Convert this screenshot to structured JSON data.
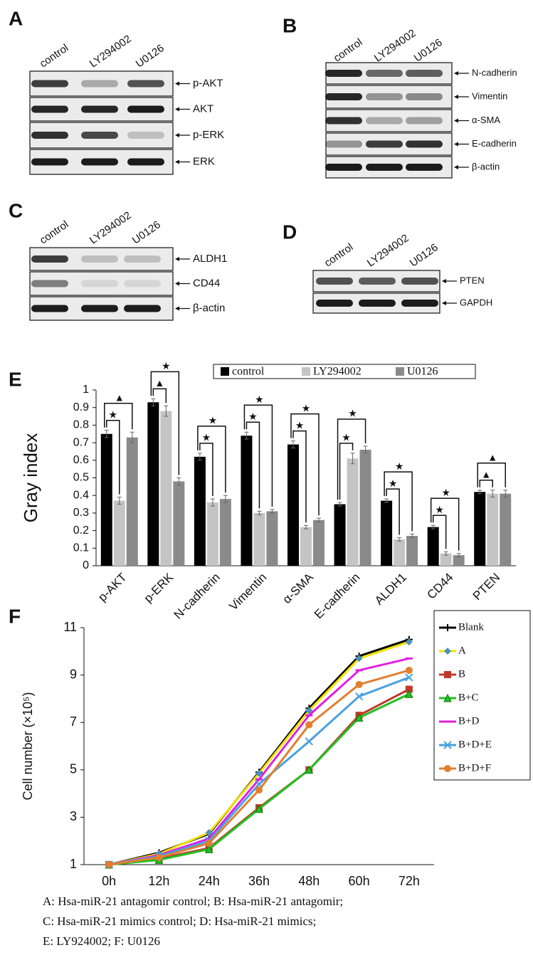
{
  "panels": [
    {
      "letter": "A",
      "lanes": [
        "control",
        "LY294002",
        "U0126"
      ],
      "rows": [
        "p-AKT",
        "AKT",
        "p-ERK",
        "ERK"
      ]
    },
    {
      "letter": "B",
      "lanes": [
        "control",
        "LY294002",
        "U0126"
      ],
      "rows": [
        "N-cadherin",
        "Vimentin",
        "α-SMA",
        "E-cadherin",
        "β-actin"
      ]
    },
    {
      "letter": "C",
      "lanes": [
        "control",
        "LY294002",
        "U0126"
      ],
      "rows": [
        "ALDH1",
        "CD44",
        "β-actin"
      ]
    },
    {
      "letter": "D",
      "lanes": [
        "control",
        "LY294002",
        "U0126"
      ],
      "rows": [
        "PTEN",
        "GAPDH"
      ]
    }
  ],
  "chart_data": [
    {
      "type": "bar",
      "panel": "E",
      "y_label": "Gray index",
      "categories": [
        "p-AKT",
        "p-ERK",
        "N-cadherin",
        "Vimentin",
        "α-SMA",
        "E-cadherin",
        "ALDH1",
        "CD44",
        "PTEN"
      ],
      "series": [
        {
          "name": "control",
          "color": "#000000",
          "values": [
            0.75,
            0.93,
            0.62,
            0.74,
            0.69,
            0.35,
            0.37,
            0.22,
            0.42
          ],
          "errors": [
            0.02,
            0.02,
            0.02,
            0.02,
            0.02,
            0.01,
            0.01,
            0.01,
            0.01
          ]
        },
        {
          "name": "LY294002",
          "color": "#c4c4c4",
          "values": [
            0.37,
            0.88,
            0.36,
            0.3,
            0.22,
            0.61,
            0.15,
            0.07,
            0.41
          ],
          "errors": [
            0.02,
            0.03,
            0.02,
            0.01,
            0.01,
            0.03,
            0.01,
            0.01,
            0.02
          ]
        },
        {
          "name": "U0126",
          "color": "#8a8a8a",
          "values": [
            0.73,
            0.48,
            0.38,
            0.31,
            0.26,
            0.66,
            0.17,
            0.06,
            0.41
          ],
          "errors": [
            0.03,
            0.02,
            0.02,
            0.01,
            0.01,
            0.02,
            0.01,
            0.01,
            0.02
          ]
        }
      ],
      "significance": [
        [
          "★",
          "▲"
        ],
        [
          "▲",
          "★"
        ],
        [
          "★",
          "★"
        ],
        [
          "★",
          "★"
        ],
        [
          "★",
          "★"
        ],
        [
          "★",
          "★"
        ],
        [
          "★",
          "★"
        ],
        [
          "★",
          "★"
        ],
        [
          "▲",
          "▲"
        ]
      ],
      "ylim": [
        0,
        1
      ],
      "yticks": [
        0,
        0.1,
        0.2,
        0.3,
        0.4,
        0.5,
        0.6,
        0.7,
        0.8,
        0.9,
        1
      ],
      "legend": "top"
    },
    {
      "type": "line",
      "panel": "F",
      "y_label": "Cell number (×10⁵)",
      "categories": [
        "0h",
        "12h",
        "24h",
        "36h",
        "48h",
        "60h",
        "72h"
      ],
      "series": [
        {
          "name": "Blank",
          "color": "#000000",
          "marker": "plus",
          "values": [
            1,
            1.5,
            2.3,
            4.9,
            7.6,
            9.8,
            10.5
          ]
        },
        {
          "name": "A",
          "color": "#f2e200",
          "marker": "diamond",
          "values": [
            1,
            1.45,
            2.35,
            4.85,
            7.5,
            9.7,
            10.4
          ]
        },
        {
          "name": "B",
          "color": "#c0392b",
          "marker": "square",
          "values": [
            1,
            1.25,
            1.7,
            3.4,
            5.0,
            7.3,
            8.4
          ]
        },
        {
          "name": "B+C",
          "color": "#22c022",
          "marker": "triangle",
          "values": [
            1,
            1.2,
            1.65,
            3.35,
            5.0,
            7.2,
            8.2
          ]
        },
        {
          "name": "B+D",
          "color": "#e020e0",
          "marker": "dash",
          "values": [
            1,
            1.4,
            2.1,
            4.6,
            7.3,
            9.2,
            9.7
          ]
        },
        {
          "name": "B+D+E",
          "color": "#4aa0e0",
          "marker": "cross",
          "values": [
            1,
            1.35,
            2.0,
            4.4,
            6.2,
            8.1,
            8.9
          ]
        },
        {
          "name": "B+D+F",
          "color": "#e08030",
          "marker": "circle",
          "values": [
            1,
            1.3,
            1.9,
            4.15,
            6.9,
            8.6,
            9.2
          ]
        }
      ],
      "ylim": [
        1,
        11
      ],
      "yticks": [
        1,
        3,
        5,
        7,
        9,
        11
      ],
      "legend": "right"
    }
  ],
  "footnote": [
    "A: Hsa-miR-21 antagomir control; B: Hsa-miR-21 antagomir;",
    "C: Hsa-miR-21 mimics control; D: Hsa-miR-21 mimics;",
    "E: LY924002; F: U0126"
  ]
}
